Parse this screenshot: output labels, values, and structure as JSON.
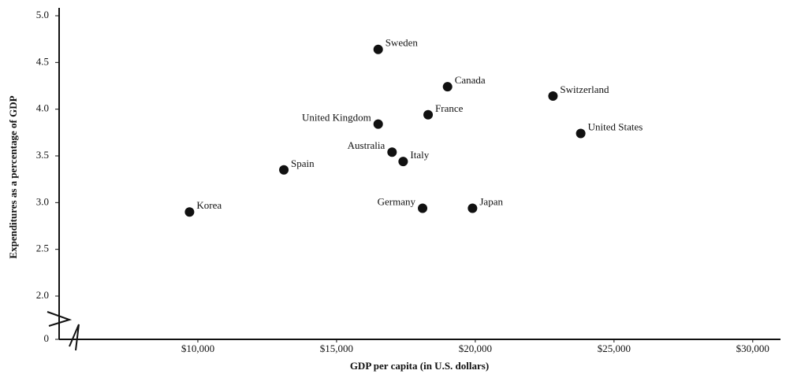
{
  "chart_data": {
    "type": "scatter",
    "xlabel": "GDP per capita (in U.S. dollars)",
    "ylabel": "Expenditures as a percentage of GDP",
    "point_labels": [
      "Korea",
      "Spain",
      "United Kingdom",
      "Sweden",
      "Australia",
      "Italy",
      "Germany",
      "France",
      "Canada",
      "Japan",
      "Switzerland",
      "United States"
    ],
    "x": [
      9700,
      13100,
      16500,
      16500,
      17000,
      17400,
      18100,
      18300,
      19000,
      19900,
      22800,
      23800
    ],
    "values": [
      2.9,
      3.35,
      3.84,
      4.64,
      3.54,
      3.44,
      2.94,
      3.94,
      4.24,
      2.94,
      4.14,
      3.74
    ],
    "color": "#111111",
    "xlim": [
      5000,
      31000
    ],
    "xticks": [
      {
        "value": 10000,
        "label": "$10,000"
      },
      {
        "value": 15000,
        "label": "$15,000"
      },
      {
        "value": 20000,
        "label": "$20,000"
      },
      {
        "value": 25000,
        "label": "$25,000"
      },
      {
        "value": 30000,
        "label": "$30,000"
      }
    ],
    "ylim": [
      0,
      5
    ],
    "ybreak": [
      0,
      2
    ],
    "yticks": [
      0,
      {
        "value": 2,
        "label": "2.0"
      },
      {
        "value": 2.5,
        "label": "2.5"
      },
      {
        "value": 3,
        "label": "3.0"
      },
      {
        "value": 3.5,
        "label": "3.5"
      },
      {
        "value": 4,
        "label": "4.0"
      },
      {
        "value": 4.5,
        "label": "4.5"
      },
      {
        "value": 5,
        "label": "5.0"
      }
    ]
  }
}
